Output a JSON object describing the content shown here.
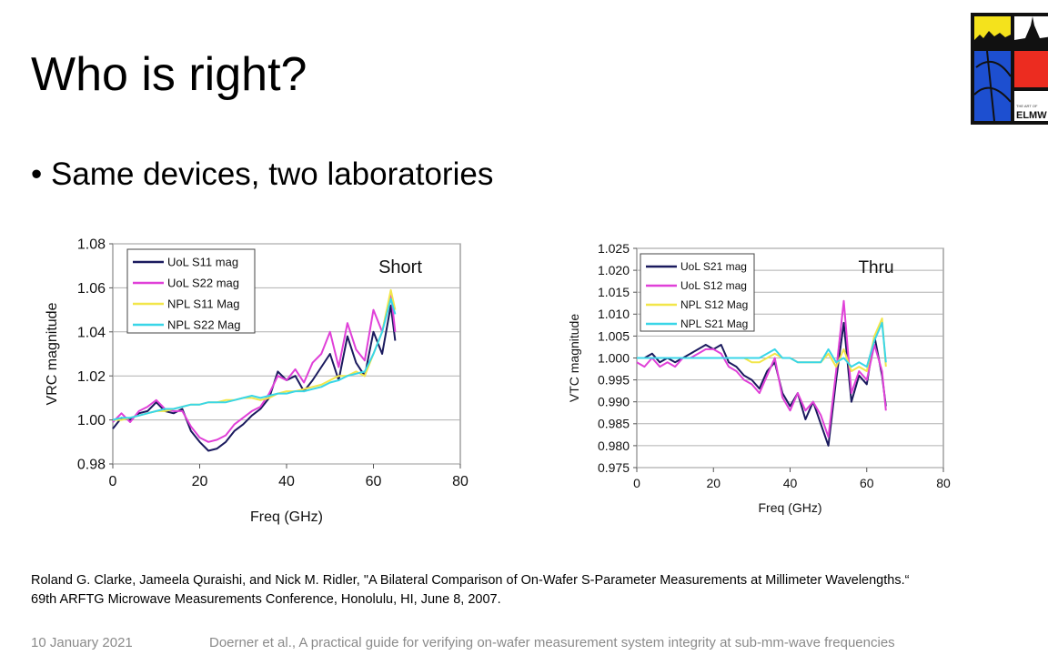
{
  "slide": {
    "title": "Who is right?",
    "bullet": "• Same devices, two laboratories",
    "reference_line1": "Roland G. Clarke, Jameela Quraishi, and Nick M. Ridler, \"A Bilateral Comparison of On-Wafer S-Parameter Measurements at Millimeter Wavelengths.“",
    "reference_line2": "69th ARFTG Microwave Measurements Conference, Honolulu, HI, June 8, 2007.",
    "footer_date": "10 January 2021",
    "footer_text": "Doerner et al., A practical guide for verifying on-wafer measurement system integrity at sub-mm-wave frequencies",
    "logo_text": "ELMW",
    "logo_small_text": "THE ART OF"
  },
  "chart_data": [
    {
      "type": "line",
      "annotation": "Short",
      "xlabel": "Freq (GHz)",
      "ylabel": "VRC magnitude",
      "xlim": [
        0,
        80
      ],
      "ylim": [
        0.98,
        1.08
      ],
      "xticks": [
        "0",
        "20",
        "40",
        "60",
        "80"
      ],
      "yticks": [
        "0.98",
        "1.00",
        "1.02",
        "1.04",
        "1.06",
        "1.08"
      ],
      "grid": "horizontal",
      "legend_position": "top-left",
      "series": [
        {
          "name": "UoL S11 mag",
          "color": "#1a1a5e",
          "x": [
            0,
            2,
            4,
            6,
            8,
            10,
            12,
            14,
            16,
            18,
            20,
            22,
            24,
            26,
            28,
            30,
            32,
            34,
            36,
            38,
            40,
            42,
            44,
            46,
            48,
            50,
            52,
            54,
            56,
            58,
            60,
            62,
            64,
            65
          ],
          "y": [
            0.996,
            1.001,
            1.0,
            1.003,
            1.004,
            1.008,
            1.004,
            1.003,
            1.005,
            0.995,
            0.99,
            0.986,
            0.987,
            0.99,
            0.995,
            0.998,
            1.002,
            1.005,
            1.01,
            1.022,
            1.018,
            1.02,
            1.013,
            1.018,
            1.024,
            1.03,
            1.018,
            1.038,
            1.026,
            1.02,
            1.04,
            1.03,
            1.052,
            1.036
          ]
        },
        {
          "name": "UoL S22 mag",
          "color": "#e040d8",
          "x": [
            0,
            2,
            4,
            6,
            8,
            10,
            12,
            14,
            16,
            18,
            20,
            22,
            24,
            26,
            28,
            30,
            32,
            34,
            36,
            38,
            40,
            42,
            44,
            46,
            48,
            50,
            52,
            54,
            56,
            58,
            60,
            62,
            64,
            65
          ],
          "y": [
            0.999,
            1.003,
            0.999,
            1.004,
            1.006,
            1.009,
            1.005,
            1.004,
            1.004,
            0.997,
            0.992,
            0.99,
            0.991,
            0.993,
            0.998,
            1.001,
            1.004,
            1.006,
            1.012,
            1.02,
            1.018,
            1.023,
            1.017,
            1.026,
            1.03,
            1.04,
            1.024,
            1.044,
            1.032,
            1.027,
            1.05,
            1.04,
            1.058,
            1.04
          ]
        },
        {
          "name": "NPL S11 Mag",
          "color": "#f2e64a",
          "x": [
            0,
            2,
            4,
            6,
            8,
            10,
            12,
            14,
            16,
            18,
            20,
            22,
            24,
            26,
            28,
            30,
            32,
            34,
            36,
            38,
            40,
            42,
            44,
            46,
            48,
            50,
            52,
            54,
            56,
            58,
            60,
            62,
            64,
            65
          ],
          "y": [
            1.0,
            1.0,
            1.001,
            1.002,
            1.003,
            1.004,
            1.004,
            1.005,
            1.006,
            1.007,
            1.007,
            1.008,
            1.008,
            1.009,
            1.009,
            1.01,
            1.01,
            1.009,
            1.01,
            1.012,
            1.013,
            1.013,
            1.014,
            1.015,
            1.016,
            1.018,
            1.02,
            1.02,
            1.022,
            1.02,
            1.03,
            1.04,
            1.059,
            1.05
          ]
        },
        {
          "name": "NPL S22 Mag",
          "color": "#39d6e8",
          "x": [
            0,
            2,
            4,
            6,
            8,
            10,
            12,
            14,
            16,
            18,
            20,
            22,
            24,
            26,
            28,
            30,
            32,
            34,
            36,
            38,
            40,
            42,
            44,
            46,
            48,
            50,
            52,
            54,
            56,
            58,
            60,
            62,
            64,
            65
          ],
          "y": [
            1.0,
            1.001,
            1.001,
            1.002,
            1.003,
            1.004,
            1.005,
            1.005,
            1.006,
            1.007,
            1.007,
            1.008,
            1.008,
            1.008,
            1.009,
            1.01,
            1.011,
            1.01,
            1.011,
            1.012,
            1.012,
            1.013,
            1.013,
            1.014,
            1.015,
            1.017,
            1.018,
            1.02,
            1.021,
            1.022,
            1.03,
            1.04,
            1.055,
            1.048
          ]
        }
      ]
    },
    {
      "type": "line",
      "annotation": "Thru",
      "xlabel": "Freq (GHz)",
      "ylabel": "VTC magnitude",
      "xlim": [
        0,
        80
      ],
      "ylim": [
        0.975,
        1.025
      ],
      "xticks": [
        "0",
        "20",
        "40",
        "60",
        "80"
      ],
      "yticks": [
        "0.975",
        "0.980",
        "0.985",
        "0.990",
        "0.995",
        "1.000",
        "1.005",
        "1.010",
        "1.015",
        "1.020",
        "1.025"
      ],
      "grid": "horizontal",
      "legend_position": "top-left",
      "series": [
        {
          "name": "UoL S21 mag",
          "color": "#1a1a5e",
          "x": [
            0,
            2,
            4,
            6,
            8,
            10,
            12,
            14,
            16,
            18,
            20,
            22,
            24,
            26,
            28,
            30,
            32,
            34,
            36,
            38,
            40,
            42,
            44,
            46,
            48,
            50,
            52,
            54,
            56,
            58,
            60,
            62,
            64,
            65
          ],
          "y": [
            1.0,
            1.0,
            1.001,
            0.999,
            1.0,
            0.999,
            1.0,
            1.001,
            1.002,
            1.003,
            1.002,
            1.003,
            0.999,
            0.998,
            0.996,
            0.995,
            0.993,
            0.997,
            0.999,
            0.992,
            0.989,
            0.992,
            0.986,
            0.99,
            0.985,
            0.98,
            0.995,
            1.008,
            0.99,
            0.996,
            0.994,
            1.005,
            0.996,
            0.989
          ]
        },
        {
          "name": "UoL S12 mag",
          "color": "#e040d8",
          "x": [
            0,
            2,
            4,
            6,
            8,
            10,
            12,
            14,
            16,
            18,
            20,
            22,
            24,
            26,
            28,
            30,
            32,
            34,
            36,
            38,
            40,
            42,
            44,
            46,
            48,
            50,
            52,
            54,
            56,
            58,
            60,
            62,
            64,
            65
          ],
          "y": [
            0.999,
            0.998,
            1.0,
            0.998,
            0.999,
            0.998,
            1.0,
            1.0,
            1.001,
            1.002,
            1.002,
            1.001,
            0.998,
            0.997,
            0.995,
            0.994,
            0.992,
            0.996,
            1.0,
            0.991,
            0.988,
            0.992,
            0.988,
            0.99,
            0.987,
            0.982,
            0.997,
            1.013,
            0.992,
            0.997,
            0.995,
            1.003,
            0.997,
            0.988
          ]
        },
        {
          "name": "NPL S12 Mag",
          "color": "#f2e64a",
          "x": [
            0,
            2,
            4,
            6,
            8,
            10,
            12,
            14,
            16,
            18,
            20,
            22,
            24,
            26,
            28,
            30,
            32,
            34,
            36,
            38,
            40,
            42,
            44,
            46,
            48,
            50,
            52,
            54,
            56,
            58,
            60,
            62,
            64,
            65
          ],
          "y": [
            1.0,
            1.0,
            1.0,
            1.0,
            1.0,
            1.0,
            1.0,
            1.0,
            1.0,
            1.0,
            1.0,
            1.0,
            1.0,
            1.0,
            1.0,
            0.999,
            0.999,
            1.0,
            1.001,
            1.0,
            1.0,
            0.999,
            0.999,
            0.999,
            0.999,
            1.001,
            0.998,
            1.002,
            0.997,
            0.998,
            0.997,
            1.005,
            1.009,
            0.998
          ]
        },
        {
          "name": "NPL S21 Mag",
          "color": "#39d6e8",
          "x": [
            0,
            2,
            4,
            6,
            8,
            10,
            12,
            14,
            16,
            18,
            20,
            22,
            24,
            26,
            28,
            30,
            32,
            34,
            36,
            38,
            40,
            42,
            44,
            46,
            48,
            50,
            52,
            54,
            56,
            58,
            60,
            62,
            64,
            65
          ],
          "y": [
            1.0,
            1.0,
            1.0,
            1.0,
            1.0,
            1.0,
            1.0,
            1.0,
            1.0,
            1.0,
            1.0,
            1.0,
            1.0,
            1.0,
            1.0,
            1.0,
            1.0,
            1.001,
            1.002,
            1.0,
            1.0,
            0.999,
            0.999,
            0.999,
            0.999,
            1.002,
            0.999,
            1.0,
            0.998,
            0.999,
            0.998,
            1.004,
            1.008,
            0.999
          ]
        }
      ]
    }
  ]
}
